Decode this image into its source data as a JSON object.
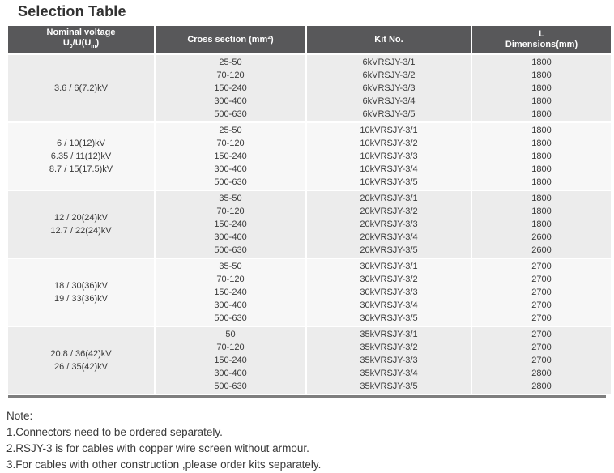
{
  "page": {
    "title": "Selection Table"
  },
  "colors": {
    "header_bg": "#58585a",
    "header_text": "#ffffff",
    "row_gray": "#ececec",
    "row_light": "#f7f7f7",
    "bottom_border": "#7e7e7e",
    "body_text": "#3a3a3a"
  },
  "table": {
    "header": {
      "col1": {
        "line1": "Nominal voltage",
        "u1": "U",
        "sub1": "0",
        "mid": "/U(U",
        "sub2": "m",
        "end": ")"
      },
      "col2": "Cross section (mm²)",
      "col3": "Kit No.",
      "col4_line1": "L",
      "col4_line2": "Dimensions(mm)"
    },
    "groups": [
      {
        "voltages": [
          "3.6 / 6(7.2)kV"
        ],
        "cross_sections": [
          "25-50",
          "70-120",
          "150-240",
          "300-400",
          "500-630"
        ],
        "kits": [
          "6kVRSJY-3/1",
          "6kVRSJY-3/2",
          "6kVRSJY-3/3",
          "6kVRSJY-3/4",
          "6kVRSJY-3/5"
        ],
        "dims": [
          "1800",
          "1800",
          "1800",
          "1800",
          "1800"
        ]
      },
      {
        "voltages": [
          "6 / 10(12)kV",
          "6.35 / 11(12)kV",
          "8.7 / 15(17.5)kV"
        ],
        "cross_sections": [
          "25-50",
          "70-120",
          "150-240",
          "300-400",
          "500-630"
        ],
        "kits": [
          "10kVRSJY-3/1",
          "10kVRSJY-3/2",
          "10kVRSJY-3/3",
          "10kVRSJY-3/4",
          "10kVRSJY-3/5"
        ],
        "dims": [
          "1800",
          "1800",
          "1800",
          "1800",
          "1800"
        ]
      },
      {
        "voltages": [
          "12 / 20(24)kV",
          "12.7 / 22(24)kV"
        ],
        "cross_sections": [
          "35-50",
          "70-120",
          "150-240",
          "300-400",
          "500-630"
        ],
        "kits": [
          "20kVRSJY-3/1",
          "20kVRSJY-3/2",
          "20kVRSJY-3/3",
          "20kVRSJY-3/4",
          "20kVRSJY-3/5"
        ],
        "dims": [
          "1800",
          "1800",
          "1800",
          "2600",
          "2600"
        ]
      },
      {
        "voltages": [
          "18 / 30(36)kV",
          "19 / 33(36)kV"
        ],
        "cross_sections": [
          "35-50",
          "70-120",
          "150-240",
          "300-400",
          "500-630"
        ],
        "kits": [
          "30kVRSJY-3/1",
          "30kVRSJY-3/2",
          "30kVRSJY-3/3",
          "30kVRSJY-3/4",
          "30kVRSJY-3/5"
        ],
        "dims": [
          "2700",
          "2700",
          "2700",
          "2700",
          "2700"
        ]
      },
      {
        "voltages": [
          "20.8 / 36(42)kV",
          "26 / 35(42)kV"
        ],
        "cross_sections": [
          "50",
          "70-120",
          "150-240",
          "300-400",
          "500-630"
        ],
        "kits": [
          "35kVRSJY-3/1",
          "35kVRSJY-3/2",
          "35kVRSJY-3/3",
          "35kVRSJY-3/4",
          "35kVRSJY-3/5"
        ],
        "dims": [
          "2700",
          "2700",
          "2700",
          "2800",
          "2800"
        ]
      }
    ]
  },
  "notes": {
    "title": "Note:",
    "items": [
      "1.Connectors need to be ordered separately.",
      "2.RSJY-3 is for cables with copper wire screen without armour.",
      "3.For cables with other construction ,please order kits separately."
    ]
  }
}
